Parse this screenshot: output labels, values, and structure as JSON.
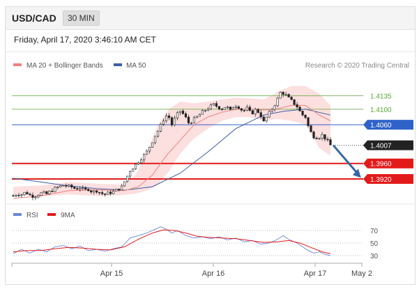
{
  "header": {
    "pair": "USD/CAD",
    "timeframe": "30 MIN"
  },
  "datetime": "Friday, April 17, 2020 3:46:10 AM CET",
  "legend": {
    "ma20": "MA 20 + Bollinger Bands",
    "ma50": "MA 50",
    "copyright": "Research © 2020 Trading Central",
    "rsi": "RSI",
    "ma9": "9MA"
  },
  "colors": {
    "ma20": "#f08080",
    "ma50": "#3b5ea8",
    "band_fill": "#fbd9d9",
    "green": "#5aa832",
    "blue_level": "#2f62c8",
    "red_level": "#e31a1a",
    "current": "#222222",
    "arrow": "#3567a8",
    "rsi": "#6a86d8",
    "rsi_ma": "#e31a1a"
  },
  "chart_data": [
    {
      "type": "line",
      "subtype": "candlestick",
      "x_ticks": [
        "Apr 15",
        "Apr 16",
        "Apr 17",
        "May 2"
      ],
      "ylim": [
        1.3875,
        1.4195
      ],
      "close_path": [
        [
          0,
          1.3877
        ],
        [
          3,
          1.3882
        ],
        [
          6,
          1.388
        ],
        [
          9,
          1.3886
        ],
        [
          12,
          1.3878
        ],
        [
          15,
          1.3875
        ],
        [
          18,
          1.388
        ],
        [
          21,
          1.3884
        ],
        [
          24,
          1.3881
        ],
        [
          27,
          1.3889
        ],
        [
          30,
          1.3895
        ],
        [
          33,
          1.39
        ],
        [
          36,
          1.3904
        ],
        [
          39,
          1.3901
        ],
        [
          42,
          1.3899
        ],
        [
          45,
          1.3894
        ],
        [
          48,
          1.3898
        ],
        [
          51,
          1.389
        ],
        [
          54,
          1.3894
        ],
        [
          57,
          1.3886
        ],
        [
          60,
          1.389
        ],
        [
          63,
          1.3883
        ],
        [
          66,
          1.388
        ],
        [
          69,
          1.3884
        ],
        [
          72,
          1.3887
        ],
        [
          75,
          1.3893
        ],
        [
          78,
          1.3899
        ],
        [
          81,
          1.392
        ],
        [
          84,
          1.3942
        ],
        [
          87,
          1.3953
        ],
        [
          90,
          1.3965
        ],
        [
          93,
          1.3978
        ],
        [
          96,
          1.399
        ],
        [
          99,
          1.401
        ],
        [
          102,
          1.4032
        ],
        [
          105,
          1.405
        ],
        [
          108,
          1.4073
        ],
        [
          111,
          1.4088
        ],
        [
          114,
          1.406
        ],
        [
          117,
          1.4082
        ],
        [
          120,
          1.4096
        ],
        [
          123,
          1.4084
        ],
        [
          126,
          1.4065
        ],
        [
          129,
          1.4071
        ],
        [
          132,
          1.408
        ],
        [
          135,
          1.409
        ],
        [
          138,
          1.4098
        ],
        [
          141,
          1.4105
        ],
        [
          144,
          1.4112
        ],
        [
          147,
          1.4106
        ],
        [
          150,
          1.4101
        ],
        [
          153,
          1.4108
        ],
        [
          156,
          1.4096
        ],
        [
          159,
          1.4112
        ],
        [
          162,
          1.4106
        ],
        [
          165,
          1.4095
        ],
        [
          168,
          1.4102
        ],
        [
          171,
          1.4088
        ],
        [
          174,
          1.4098
        ],
        [
          177,
          1.4091
        ],
        [
          180,
          1.4067
        ],
        [
          183,
          1.4085
        ],
        [
          186,
          1.4101
        ],
        [
          189,
          1.4118
        ],
        [
          192,
          1.4143
        ],
        [
          195,
          1.414
        ],
        [
          198,
          1.4128
        ],
        [
          201,
          1.4118
        ],
        [
          204,
          1.4107
        ],
        [
          207,
          1.4088
        ],
        [
          210,
          1.408
        ],
        [
          213,
          1.4045
        ],
        [
          216,
          1.403
        ],
        [
          219,
          1.4027
        ],
        [
          222,
          1.4033
        ],
        [
          225,
          1.4022
        ],
        [
          228,
          1.4007
        ]
      ],
      "ma20": [
        [
          0,
          1.387
        ],
        [
          20,
          1.3876
        ],
        [
          40,
          1.389
        ],
        [
          60,
          1.3892
        ],
        [
          80,
          1.389
        ],
        [
          90,
          1.39
        ],
        [
          100,
          1.393
        ],
        [
          110,
          1.398
        ],
        [
          120,
          1.402
        ],
        [
          130,
          1.406
        ],
        [
          140,
          1.408
        ],
        [
          150,
          1.4092
        ],
        [
          160,
          1.41
        ],
        [
          170,
          1.4101
        ],
        [
          180,
          1.4098
        ],
        [
          190,
          1.4101
        ],
        [
          200,
          1.411
        ],
        [
          210,
          1.411
        ],
        [
          220,
          1.4085
        ],
        [
          228,
          1.407
        ]
      ],
      "upper_band": [
        [
          0,
          1.39
        ],
        [
          20,
          1.3903
        ],
        [
          40,
          1.3912
        ],
        [
          60,
          1.3908
        ],
        [
          78,
          1.3905
        ],
        [
          88,
          1.393
        ],
        [
          96,
          1.399
        ],
        [
          104,
          1.406
        ],
        [
          112,
          1.41
        ],
        [
          120,
          1.412
        ],
        [
          130,
          1.4115
        ],
        [
          140,
          1.412
        ],
        [
          150,
          1.4125
        ],
        [
          160,
          1.413
        ],
        [
          170,
          1.4128
        ],
        [
          180,
          1.4125
        ],
        [
          190,
          1.4145
        ],
        [
          200,
          1.416
        ],
        [
          210,
          1.416
        ],
        [
          220,
          1.414
        ],
        [
          228,
          1.411
        ]
      ],
      "lower_band": [
        [
          0,
          1.388
        ],
        [
          20,
          1.3875
        ],
        [
          40,
          1.388
        ],
        [
          60,
          1.3876
        ],
        [
          78,
          1.3878
        ],
        [
          88,
          1.3882
        ],
        [
          96,
          1.389
        ],
        [
          104,
          1.3905
        ],
        [
          112,
          1.394
        ],
        [
          120,
          1.3985
        ],
        [
          130,
          1.4025
        ],
        [
          140,
          1.405
        ],
        [
          150,
          1.407
        ],
        [
          160,
          1.408
        ],
        [
          170,
          1.408
        ],
        [
          180,
          1.407
        ],
        [
          190,
          1.4075
        ],
        [
          200,
          1.407
        ],
        [
          210,
          1.406
        ],
        [
          220,
          1.4
        ],
        [
          228,
          1.398
        ]
      ],
      "ma50": [
        [
          0,
          1.3922
        ],
        [
          20,
          1.3912
        ],
        [
          40,
          1.3902
        ],
        [
          60,
          1.3895
        ],
        [
          80,
          1.3891
        ],
        [
          100,
          1.39
        ],
        [
          120,
          1.3935
        ],
        [
          140,
          1.399
        ],
        [
          160,
          1.405
        ],
        [
          180,
          1.4085
        ],
        [
          195,
          1.4095
        ],
        [
          210,
          1.41
        ],
        [
          228,
          1.4085
        ]
      ],
      "levels": [
        {
          "value": 1.4135,
          "label": "1.4135",
          "kind": "green"
        },
        {
          "value": 1.41,
          "label": "1.4100",
          "kind": "green"
        },
        {
          "value": 1.406,
          "label": "1.4060",
          "kind": "blue"
        },
        {
          "value": 1.4007,
          "label": "1.4007",
          "kind": "current"
        },
        {
          "value": 1.396,
          "label": "1.3960",
          "kind": "red"
        },
        {
          "value": 1.392,
          "label": "1.3920",
          "kind": "red"
        }
      ],
      "forecast_arrow": {
        "from": [
          230,
          1.4007
        ],
        "to": [
          250,
          1.3923
        ]
      }
    },
    {
      "type": "line",
      "subtype": "rsi",
      "ylim": [
        20,
        80
      ],
      "y_ticks": [
        "70",
        "50",
        "30"
      ],
      "series": [
        {
          "name": "RSI",
          "values": [
            [
              0,
              33
            ],
            [
              6,
              40
            ],
            [
              12,
              34
            ],
            [
              18,
              40
            ],
            [
              24,
              36
            ],
            [
              30,
              44
            ],
            [
              36,
              46
            ],
            [
              42,
              41
            ],
            [
              48,
              45
            ],
            [
              54,
              38
            ],
            [
              60,
              40
            ],
            [
              66,
              37
            ],
            [
              72,
              41
            ],
            [
              78,
              44
            ],
            [
              84,
              58
            ],
            [
              90,
              62
            ],
            [
              96,
              66
            ],
            [
              102,
              72
            ],
            [
              106,
              76
            ],
            [
              110,
              72
            ],
            [
              114,
              66
            ],
            [
              118,
              70
            ],
            [
              124,
              62
            ],
            [
              130,
              58
            ],
            [
              136,
              60
            ],
            [
              142,
              57
            ],
            [
              148,
              60
            ],
            [
              154,
              55
            ],
            [
              160,
              58
            ],
            [
              166,
              52
            ],
            [
              172,
              54
            ],
            [
              178,
              48
            ],
            [
              184,
              50
            ],
            [
              190,
              56
            ],
            [
              194,
              62
            ],
            [
              198,
              56
            ],
            [
              204,
              50
            ],
            [
              208,
              44
            ],
            [
              212,
              38
            ],
            [
              216,
              34
            ],
            [
              220,
              36
            ],
            [
              224,
              32
            ],
            [
              228,
              30
            ]
          ]
        },
        {
          "name": "9MA",
          "values": [
            [
              0,
              36
            ],
            [
              10,
              38
            ],
            [
              20,
              38
            ],
            [
              30,
              41
            ],
            [
              40,
              43
            ],
            [
              50,
              42
            ],
            [
              60,
              40
            ],
            [
              70,
              39
            ],
            [
              80,
              44
            ],
            [
              90,
              56
            ],
            [
              100,
              66
            ],
            [
              108,
              71
            ],
            [
              116,
              70
            ],
            [
              124,
              66
            ],
            [
              132,
              61
            ],
            [
              140,
              59
            ],
            [
              150,
              58
            ],
            [
              160,
              57
            ],
            [
              170,
              54
            ],
            [
              180,
              51
            ],
            [
              190,
              52
            ],
            [
              198,
              54
            ],
            [
              206,
              50
            ],
            [
              214,
              43
            ],
            [
              222,
              36
            ],
            [
              228,
              33
            ]
          ]
        }
      ]
    }
  ]
}
